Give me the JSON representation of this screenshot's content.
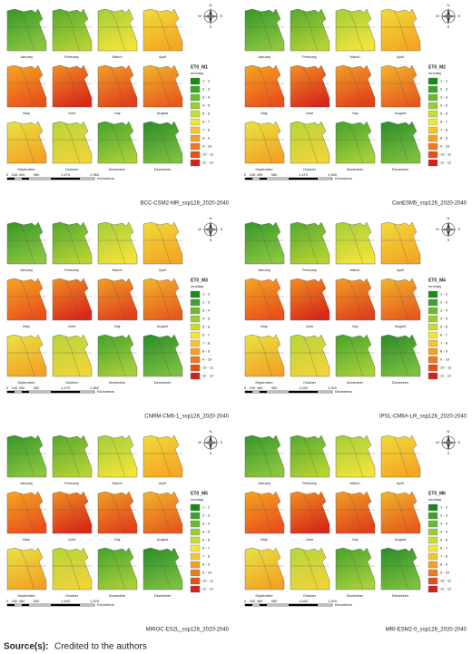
{
  "months": [
    "January",
    "February",
    "March",
    "April",
    "May",
    "June",
    "July",
    "August",
    "September",
    "October",
    "November",
    "December"
  ],
  "legend_classes": [
    "1 - 2",
    "2 - 3",
    "3 - 4",
    "4 - 5",
    "5 - 6",
    "6 - 7",
    "7 - 8",
    "8 - 9",
    "9 - 10",
    "10 - 11",
    "11 - 12"
  ],
  "compass": [
    "N",
    "S",
    "E",
    "W"
  ],
  "panels": [
    {
      "model": "BCC-CSM2-MR_ssp126_2020-2040",
      "legend_title": "ET0_M1",
      "unit": "mm/day",
      "scale": [
        "0",
        "245",
        "490",
        "980",
        "1,470",
        "1,960"
      ],
      "scale_unit": "Kilometers"
    },
    {
      "model": "CanESM5_ssp126_2020-2040",
      "legend_title": "ET0_M2",
      "unit": "mm/day",
      "scale": [
        "0",
        "245",
        "490",
        "980",
        "1,470",
        "1,960"
      ],
      "scale_unit": "Kilometers"
    },
    {
      "model": "CNRM-CM6-1_ssp126_2020-2040",
      "legend_title": "ET0_M3",
      "unit": "mm/day",
      "scale": [
        "0",
        "245",
        "490",
        "980",
        "1,470",
        "1,960"
      ],
      "scale_unit": "Kilometers"
    },
    {
      "model": "IPSL-CM6A-LR_ssp126_2020-2040",
      "legend_title": "ET0_M4",
      "unit": "mm/day",
      "scale": [
        "0",
        "240",
        "480",
        "960",
        "1,440",
        "1,920"
      ],
      "scale_unit": "Kilometers"
    },
    {
      "model": "MIROC-ES2L_ssp126_2020-2040",
      "legend_title": "ET0_M5",
      "unit": "mm/day",
      "scale": [
        "0",
        "240",
        "480",
        "960",
        "1,440",
        "1,920"
      ],
      "scale_unit": "Kilometers"
    },
    {
      "model": "MRI-ESM2-0_ssp126_2020-2040",
      "legend_title": "ET0_M6",
      "unit": "mm/day",
      "scale": [
        "0",
        "240",
        "480",
        "960",
        "1,440",
        "1,920"
      ],
      "scale_unit": "Kilometers"
    }
  ],
  "source": {
    "label": "Source(s):",
    "text": "Credited to the authors"
  }
}
